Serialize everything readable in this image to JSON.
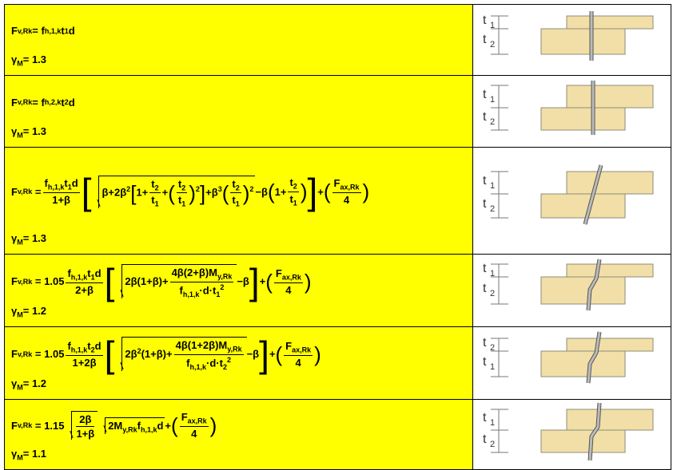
{
  "rows": [
    {
      "formula": [
        "F",
        "v,Rk",
        "= f",
        "h,1,k",
        "t",
        "1",
        "d"
      ],
      "gamma": [
        "γ",
        "M",
        "= 1.3"
      ],
      "labels": [
        "t",
        "1",
        "t",
        "2"
      ]
    },
    {
      "formula": [
        "F",
        "v,Rk",
        "= f",
        "h,2,k",
        "t",
        "2",
        "d"
      ],
      "gamma": [
        "γ",
        "M",
        "= 1.3"
      ],
      "labels": [
        "t",
        "1",
        "t",
        "2"
      ]
    },
    {
      "formula": [
        "F",
        "v,Rk",
        "=",
        "f",
        "h,1,k",
        "t",
        "1",
        "d",
        "1+β",
        "[",
        "β+2β",
        "2",
        "[",
        "1+",
        "t",
        "2",
        "t",
        "1",
        "+",
        "(",
        "t",
        "2",
        "t",
        "1",
        ")",
        "2",
        "]",
        "+β",
        "3",
        "(",
        "t",
        "2",
        "t",
        "1",
        ")",
        "2",
        "−β",
        "(",
        "1+",
        "t",
        "2",
        "t",
        "1",
        ")",
        "]",
        "+",
        "(",
        "F",
        "ax,Rk",
        "4",
        ")"
      ],
      "gamma": [
        "γ",
        "M",
        "= 1.3"
      ],
      "labels": [
        "t",
        "1",
        "t",
        "2"
      ]
    },
    {
      "formula": [
        "F",
        "v,Rk",
        "= 1.05",
        "f",
        "h,1,k",
        "t",
        "1",
        "d",
        "2+β",
        "[",
        "2β(1+β)+",
        "4β(2+β)M",
        "y,Rk",
        "f",
        "h,1,k",
        "·d·t",
        "1",
        "2",
        "−β",
        "]",
        "+",
        "(",
        "F",
        "ax,Rk",
        "4",
        ")"
      ],
      "gamma": [
        "γ",
        "M",
        "= 1.2"
      ],
      "labels": [
        "t",
        "1",
        "t",
        "2"
      ]
    },
    {
      "formula": [
        "F",
        "v,Rk",
        "= 1.05",
        "f",
        "h,1,k",
        "t",
        "2",
        "d",
        "1+2β",
        "[",
        "2β",
        "2",
        "(1+β)+",
        "4β(1+2β)M",
        "y,Rk",
        "f",
        "h,1,k",
        "·d·t",
        "2",
        "2",
        "−β",
        "]",
        "+",
        "(",
        "F",
        "ax,Rk",
        "4",
        ")"
      ],
      "gamma": [
        "γ",
        "M",
        "= 1.2"
      ],
      "labels": [
        "t",
        "2",
        "t",
        "1"
      ]
    },
    {
      "formula": [
        "F",
        "v,Rk",
        "= 1.15",
        "2β",
        "1+β",
        "2M",
        "y,Rk",
        "f",
        "h,1,k",
        "d",
        "+",
        "(",
        "F",
        "ax,Rk",
        "4",
        ")"
      ],
      "gamma": [
        "γ",
        "M",
        "= 1.1"
      ],
      "labels": [
        "t",
        "1",
        "t",
        "2"
      ]
    }
  ]
}
